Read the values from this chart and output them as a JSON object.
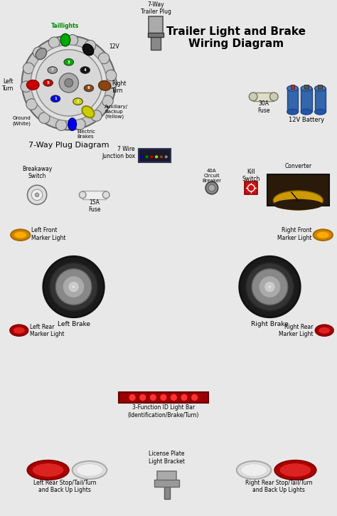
{
  "title": "Trailer Light and Brake\nWiring Diagram",
  "bg_color": "#e8e8e8",
  "title_fontsize": 11,
  "plug_label": "7-Way\nTrailer Plug",
  "junction_label": "7 Wire\nJunction box",
  "battery_label": "12V Battery",
  "fuse_30a_label": "30A\nFuse",
  "fuse_15a_label": "15A\nFuse",
  "breakaway_label": "Breakaway\nSwitch",
  "circuit_breaker_label": "40A\nCircuit\nBreaker",
  "kill_switch_label": "Kill\nSwitch",
  "converter_label": "Converter",
  "left_front_marker_label": "Left Front\nMarker Light",
  "right_front_marker_label": "Right Front\nMarker Light",
  "left_brake_label": "Left Brake",
  "right_brake_label": "Right Brake",
  "left_rear_marker_label": "Left Rear\nMarker Light",
  "right_rear_marker_label": "Right Rear\nMarker Light",
  "id_light_bar_label": "3-Function ID Light Bar\n(Identification/Brake/Turn)",
  "license_plate_label": "License Plate\nLight Bracket",
  "left_rear_stop_label": "Left Rear Stop/Tail/Turn\nand Back Up Lights",
  "right_rear_stop_label": "Right Rear Stop/Tail/Turn\nand Back Up Lights",
  "plug_diagram_label": "7-Way Plug Diagram",
  "taillight_label": "Taillights",
  "left_turn_label": "Left\nTurn",
  "right_turn_label": "Right\nTurn",
  "ground_label": "Ground\n(White)",
  "electric_brakes_label": "Electric\nBrakes",
  "aux_backup_label": "Auxiliary/\nBackup\n(Yellow)",
  "voltage_label": "12V",
  "wire_colors": {
    "green": "#008800",
    "yellow": "#cccc00",
    "blue": "#0000ee",
    "red": "#cc0000",
    "brown": "#8B4513",
    "white": "#888888",
    "black": "#111111",
    "gray": "#999999",
    "lt_gray": "#bbbbbb"
  }
}
